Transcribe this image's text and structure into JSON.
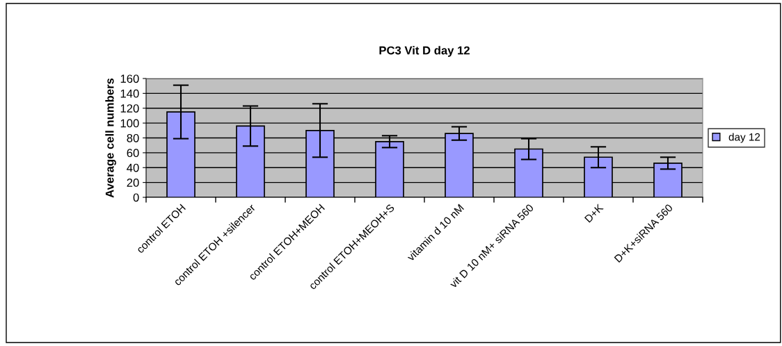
{
  "chart_data": {
    "type": "bar",
    "title": "PC3 Vit D day 12",
    "ylabel": "Average cell numbers",
    "categories": [
      "control ETOH",
      "control ETOH +silencer",
      "control ETOH+MEOH",
      "control ETOH+MEOH+S",
      "vitamin d 10 nM",
      "vit D 10 nM+ siRNA 560",
      "D+K",
      "D+K+siRNA 560"
    ],
    "series": [
      {
        "name": "day 12",
        "color": "#9999ff",
        "values": [
          115,
          96,
          90,
          75,
          86,
          65,
          54,
          46
        ],
        "errors": [
          36,
          27,
          36,
          8,
          9,
          14,
          14,
          8
        ]
      }
    ],
    "ylim": [
      0,
      160
    ],
    "yticks": [
      0,
      20,
      40,
      60,
      80,
      100,
      120,
      140,
      160
    ],
    "grid": "y",
    "legend": "right"
  }
}
